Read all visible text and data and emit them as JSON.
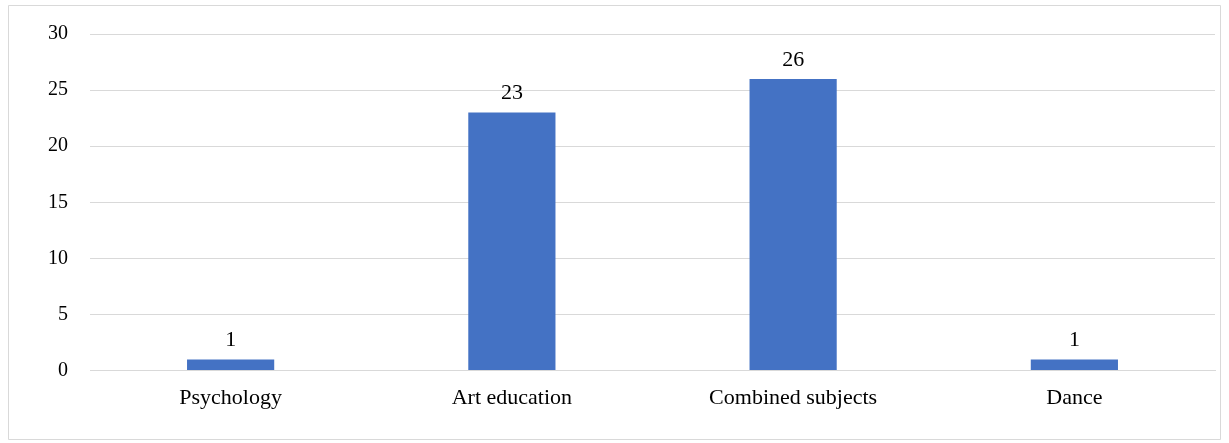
{
  "chart_data": {
    "type": "bar",
    "categories": [
      "Psychology",
      "Art education",
      "Combined subjects",
      "Dance"
    ],
    "values": [
      1,
      23,
      26,
      1
    ],
    "color": "#4472c4",
    "ylim": [
      0,
      30
    ],
    "yticks": [
      0,
      5,
      10,
      15,
      20,
      25,
      30
    ],
    "grid": "y",
    "data_labels": true
  }
}
